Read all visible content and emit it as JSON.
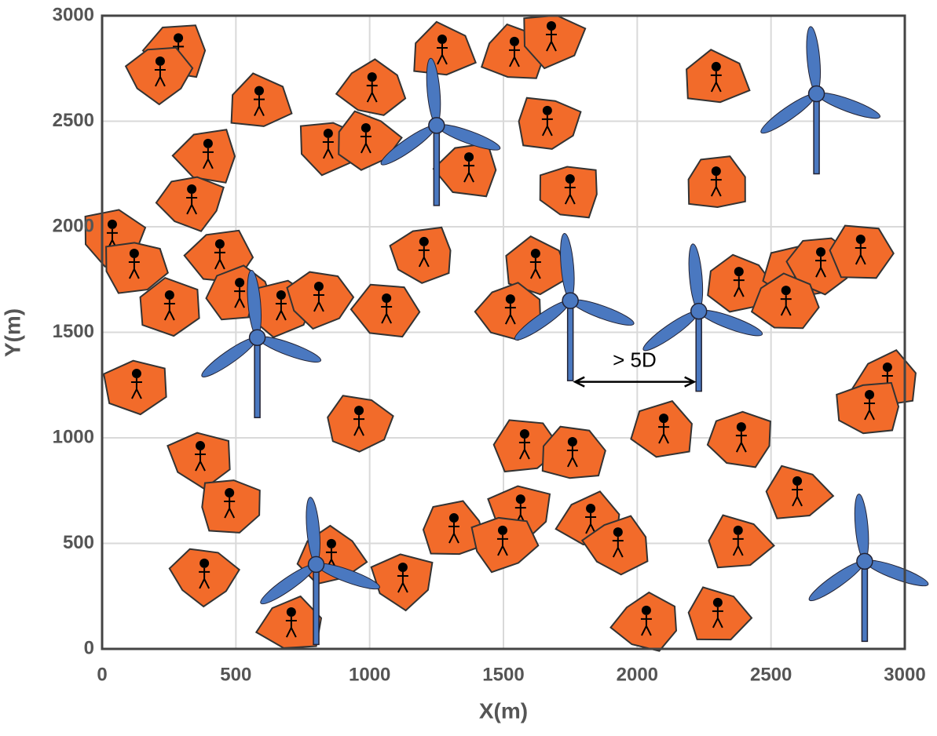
{
  "chart_data": {
    "type": "scatter",
    "xlabel": "X(m)",
    "ylabel": "Y(m)",
    "annotation": "> 5D",
    "xlim": [
      0,
      3000
    ],
    "ylim": [
      0,
      3000
    ],
    "xticks": [
      0,
      500,
      1000,
      1500,
      2000,
      2500,
      3000
    ],
    "yticks": [
      0,
      500,
      1000,
      1500,
      2000,
      2500,
      3000
    ],
    "grid": true,
    "series": [
      {
        "color": "#f26b2a",
        "x": [
          285,
          217,
          587,
          1009,
          845,
          986,
          396,
          335,
          1271,
          1541,
          1679,
          1664,
          1371,
          1749,
          2295,
          2295,
          38,
          120,
          440,
          1203,
          1620,
          514,
          669,
          810,
          1063,
          1526,
          252,
          2380,
          2592,
          2686,
          2835,
          2556,
          129,
          960,
          2099,
          2389,
          1579,
          1758,
          367,
          476,
          2935,
          2868,
          2598,
          1315,
          1564,
          1497,
          1826,
          1928,
          2377,
          857,
          1124,
          382,
          707,
          2034,
          2301
        ],
        "y": [
          2850,
          2740,
          2600,
          2665,
          2398,
          2424,
          2350,
          2134,
          2844,
          2833,
          2907,
          2506,
          2286,
          2182,
          2714,
          2219,
          1967,
          1829,
          1874,
          1885,
          1829,
          1691,
          1632,
          1673,
          1617,
          1613,
          1632,
          1743,
          1799,
          1836,
          1896,
          1654,
          1260,
          1085,
          1048,
          1007,
          974,
          937,
          918,
          695,
          1290,
          1160,
          751,
          576,
          665,
          517,
          621,
          509,
          517,
          454,
          342,
          361,
          130,
          138,
          175
        ]
      },
      {
        "color": "#4a78c0",
        "x": [
          1250,
          580,
          1750,
          2230,
          2670,
          800,
          2850
        ],
        "y": [
          2480,
          1475,
          1650,
          1600,
          2630,
          400,
          415
        ]
      }
    ]
  }
}
